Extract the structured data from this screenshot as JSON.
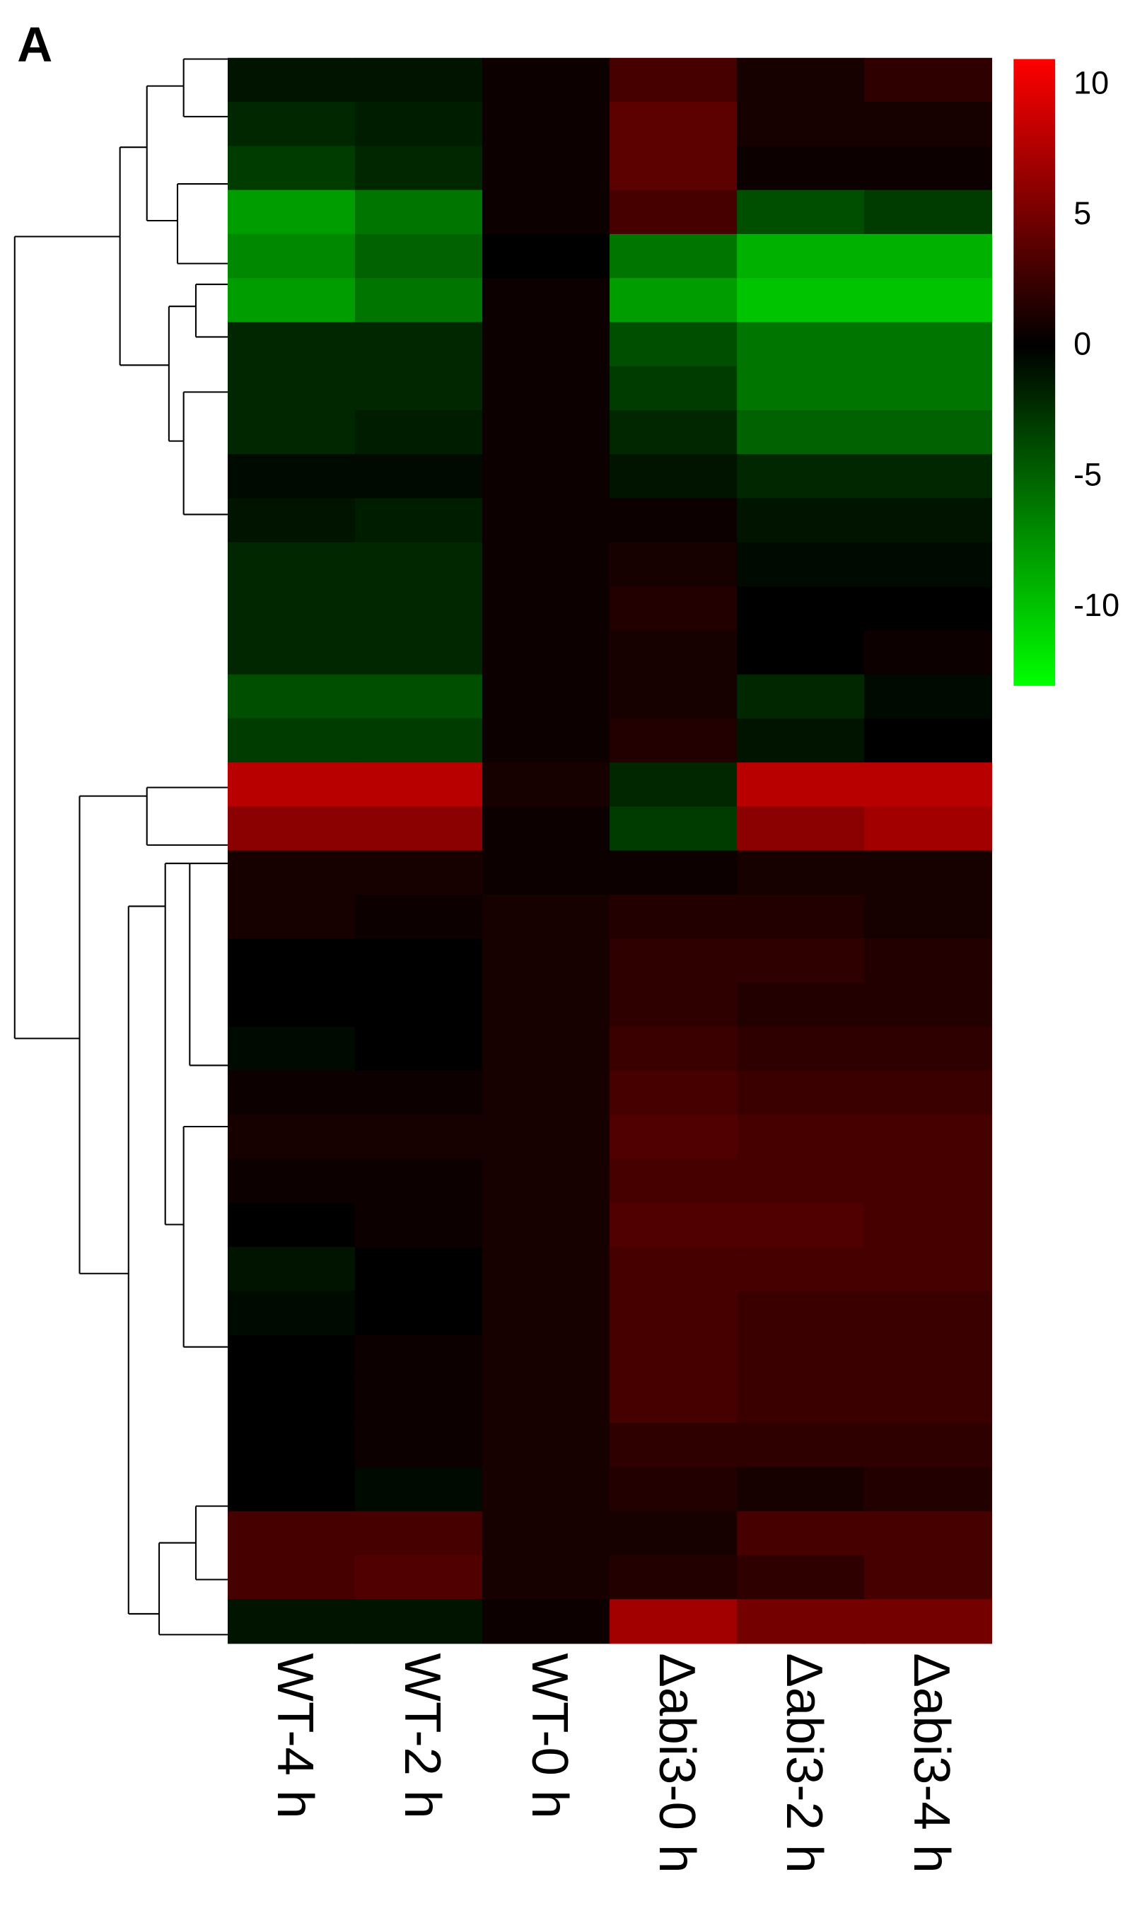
{
  "panel_label": "A",
  "chart_data": {
    "type": "heatmap",
    "categories": [
      "WT-4 h",
      "WT-2 h",
      "WT-0 h",
      "Δabi3-0 h",
      "Δabi3-2 h",
      "Δabi3-4 h"
    ],
    "colormap": [
      "#00ff00",
      "#000000",
      "#ff0000"
    ],
    "zlim": [
      -13,
      11
    ],
    "zticks": [
      10,
      5,
      0,
      -5,
      -10
    ],
    "values": [
      [
        -1,
        -1,
        0.5,
        3,
        1,
        2
      ],
      [
        -2,
        -1.5,
        0.5,
        4,
        1,
        1
      ],
      [
        -3,
        -2,
        0.5,
        4,
        0.5,
        0.5
      ],
      [
        -8,
        -6,
        0.5,
        3,
        -4,
        -3
      ],
      [
        -7,
        -5,
        0,
        -6,
        -9,
        -9
      ],
      [
        -8,
        -6,
        0.5,
        -8,
        -10,
        -10
      ],
      [
        -2,
        -2,
        0.5,
        -4,
        -6,
        -6
      ],
      [
        -2,
        -2,
        0.5,
        -3,
        -6,
        -6
      ],
      [
        -2,
        -1.5,
        0.5,
        -2,
        -5,
        -5
      ],
      [
        -0.5,
        -0.5,
        0.5,
        -1,
        -2,
        -2
      ],
      [
        -1,
        -1.5,
        0.5,
        0.5,
        -1,
        -1
      ],
      [
        -2,
        -2,
        0.5,
        1,
        -0.5,
        -0.5
      ],
      [
        -2,
        -2,
        0.5,
        1.5,
        0,
        0
      ],
      [
        -2,
        -2,
        0.5,
        1,
        0,
        0.5
      ],
      [
        -4,
        -4,
        0.5,
        1,
        -2,
        -0.5
      ],
      [
        -3,
        -3,
        0.5,
        1.5,
        -1,
        0
      ],
      [
        8,
        8,
        1,
        -2,
        8,
        8
      ],
      [
        6,
        6,
        0.5,
        -3,
        6,
        7
      ],
      [
        1,
        1,
        0.5,
        0.5,
        1,
        1
      ],
      [
        1,
        0.5,
        1,
        1.5,
        1.5,
        1
      ],
      [
        0,
        0,
        1,
        2,
        2,
        1.5
      ],
      [
        0,
        0,
        1,
        2,
        1.5,
        1.5
      ],
      [
        -0.5,
        0,
        1,
        2.5,
        2,
        2
      ],
      [
        0.5,
        0.5,
        1,
        3,
        2.5,
        2.5
      ],
      [
        1,
        1,
        1,
        3.5,
        3,
        3
      ],
      [
        0.5,
        0.5,
        1,
        3,
        3,
        3
      ],
      [
        0,
        0.5,
        1,
        3.5,
        3.5,
        3
      ],
      [
        -1,
        0,
        1,
        3,
        3,
        3
      ],
      [
        -0.5,
        0,
        1,
        3,
        2.5,
        2.5
      ],
      [
        0,
        0.5,
        1,
        3,
        2.5,
        2.5
      ],
      [
        0,
        0.5,
        1,
        3,
        2.5,
        2.5
      ],
      [
        0,
        0.5,
        1,
        2,
        2,
        2
      ],
      [
        0,
        -0.5,
        1,
        1.5,
        1,
        1.5
      ],
      [
        3,
        3,
        1,
        1,
        3,
        3
      ],
      [
        3,
        3.5,
        1,
        1.5,
        2,
        3
      ],
      [
        -1,
        -1,
        0.5,
        7,
        5,
        5
      ]
    ]
  }
}
